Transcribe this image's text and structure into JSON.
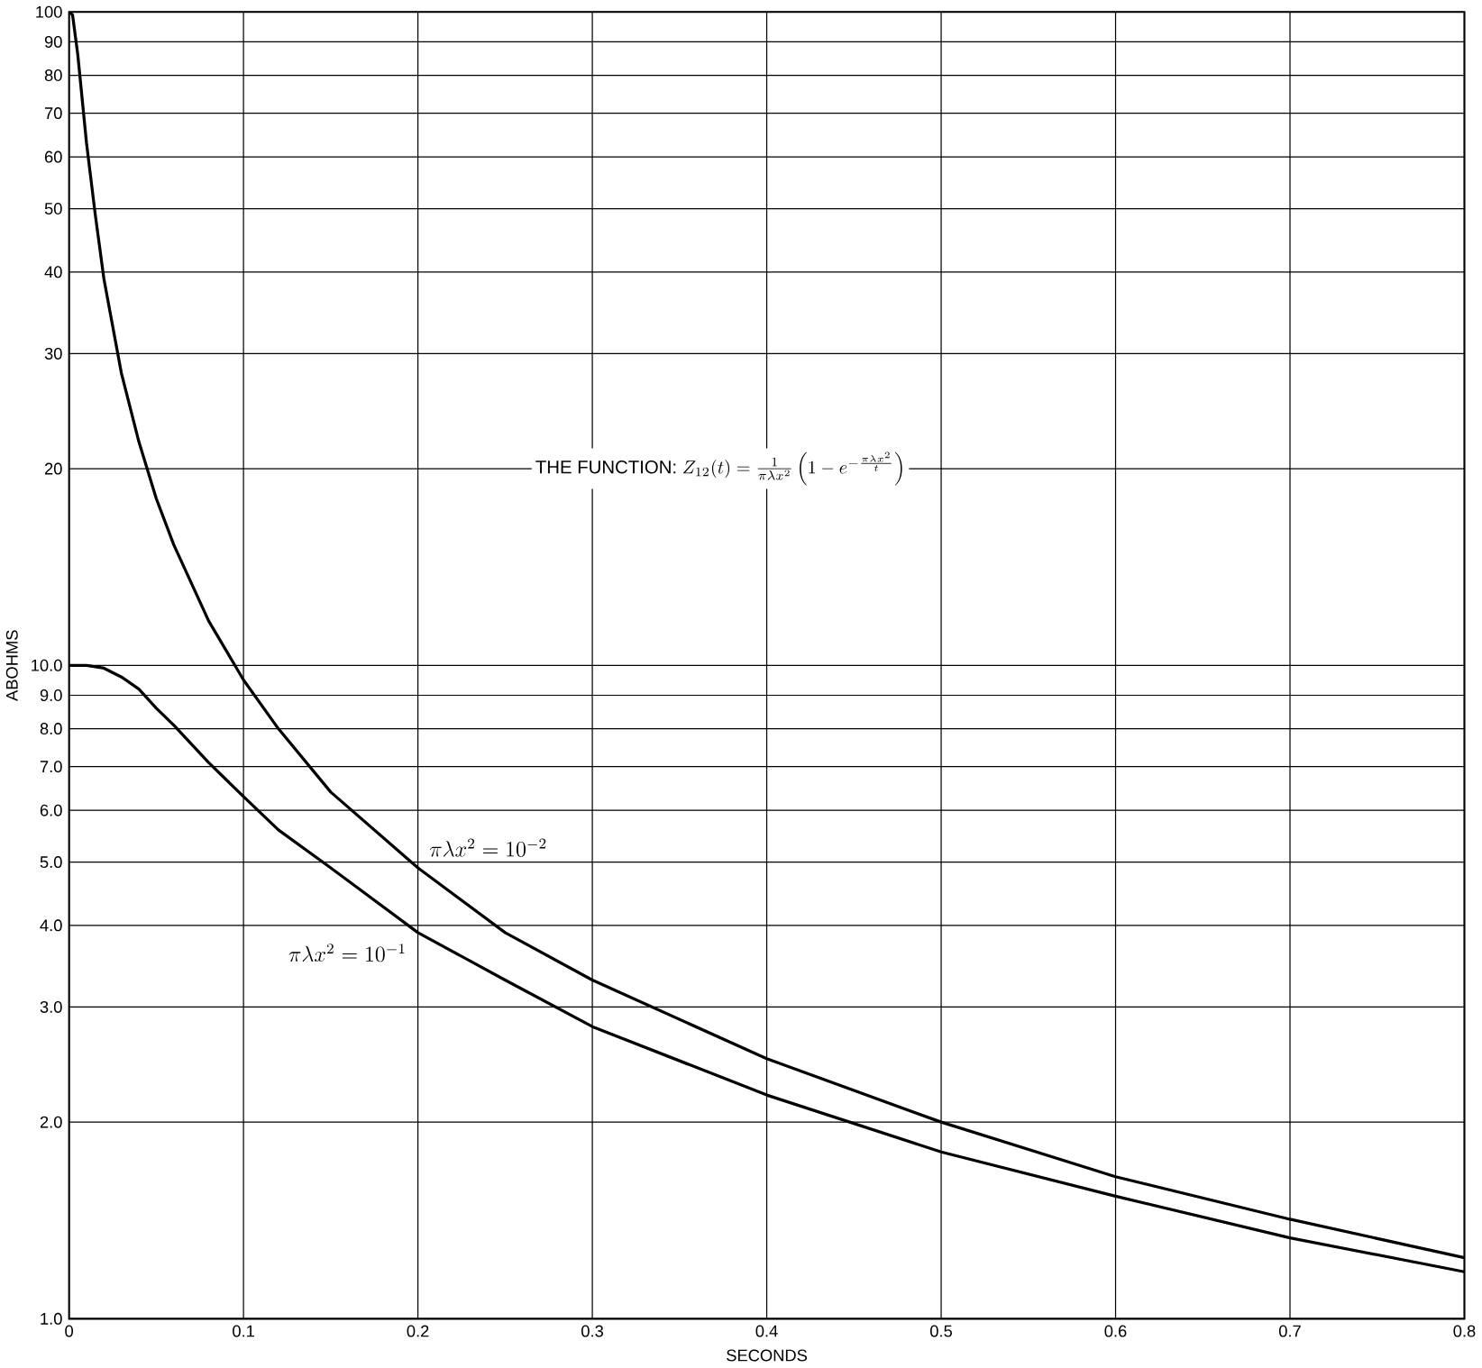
{
  "chart_data": {
    "type": "line",
    "xlabel": "SECONDS",
    "ylabel": "ABOHMS",
    "annotations": [
      "THE FUNCTION:",
      "Z_{12}(t)=\\frac{1}{\\pi\\lambda x^{2}}\\left(1-e^{-\\frac{\\pi\\lambda x^{2}}{t}}\\right)"
    ],
    "series": [
      {
        "name": "\\pi\\lambda x^{2}=10^{-2}",
        "color": "#000000",
        "x": [
          0,
          0.002,
          0.005,
          0.01,
          0.015,
          0.02,
          0.03,
          0.04,
          0.05,
          0.06,
          0.08,
          0.1,
          0.12,
          0.15,
          0.2,
          0.25,
          0.3,
          0.4,
          0.5,
          0.6,
          0.7,
          0.8
        ],
        "values": [
          100,
          99,
          86,
          63,
          49,
          39,
          28,
          22,
          18,
          15.3,
          11.7,
          9.5,
          8.0,
          6.4,
          4.9,
          3.9,
          3.3,
          2.5,
          2.0,
          1.65,
          1.42,
          1.24
        ]
      },
      {
        "name": "\\pi\\lambda x^{2}=10^{-1}",
        "color": "#000000",
        "x": [
          0,
          0.01,
          0.02,
          0.03,
          0.04,
          0.05,
          0.06,
          0.08,
          0.1,
          0.12,
          0.15,
          0.2,
          0.25,
          0.3,
          0.4,
          0.5,
          0.6,
          0.7,
          0.8
        ],
        "values": [
          10,
          10,
          9.9,
          9.6,
          9.2,
          8.6,
          8.1,
          7.1,
          6.3,
          5.6,
          4.9,
          3.9,
          3.3,
          2.8,
          2.2,
          1.8,
          1.54,
          1.33,
          1.18
        ]
      }
    ],
    "xlim": [
      0,
      0.8
    ],
    "xticks": [
      0,
      0.1,
      0.2,
      0.3,
      0.4,
      0.5,
      0.6,
      0.7,
      0.8
    ],
    "ylim": [
      1,
      100
    ],
    "yticks": [
      {
        "value": 1,
        "label": "1.0"
      },
      {
        "value": 2,
        "label": "2.0"
      },
      {
        "value": 3,
        "label": "3.0"
      },
      {
        "value": 4,
        "label": "4.0"
      },
      {
        "value": 5,
        "label": "5.0"
      },
      {
        "value": 6,
        "label": "6.0"
      },
      {
        "value": 7,
        "label": "7.0"
      },
      {
        "value": 8,
        "label": "8.0"
      },
      {
        "value": 9,
        "label": "9.0"
      },
      {
        "value": 10,
        "label": "10.0"
      },
      20,
      30,
      40,
      50,
      60,
      70,
      80,
      90,
      100
    ],
    "log": "y",
    "grid": true,
    "marker": "none",
    "line_style": "solid"
  }
}
